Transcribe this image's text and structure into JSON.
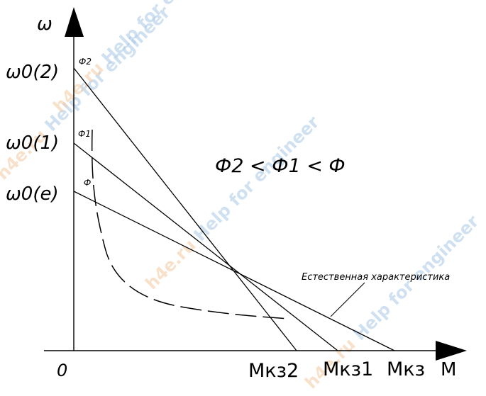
{
  "axes": {
    "y_label": "ω",
    "x_label": "M",
    "origin_label": "0"
  },
  "y_ticks": {
    "w02": "ω0(2)",
    "w01": "ω0(1)",
    "w0e": "ω0(e)"
  },
  "x_ticks": {
    "mkz2": "Мкз2",
    "mkz1": "Мкз1",
    "mkz": "Мкз"
  },
  "curve_labels": {
    "phi2": "Ф2",
    "phi1": "Ф1",
    "phi": "Ф"
  },
  "relation": "Ф2 < Ф1 < Ф",
  "natural_label": "Естественная характеристика",
  "watermarks": [
    {
      "orange": "h4e.ru",
      "blue": " Help for engineer"
    },
    {
      "orange": "h4e.ru",
      "blue": " Help for engineer"
    },
    {
      "orange": "h4e.ru",
      "blue": " Help for engineer"
    },
    {
      "orange": "h4e.ru",
      "blue": " Help for engineer"
    }
  ],
  "colors": {
    "line": "#000000",
    "watermark_orange": "#f4c9a0",
    "watermark_blue": "#a9c8e6"
  }
}
